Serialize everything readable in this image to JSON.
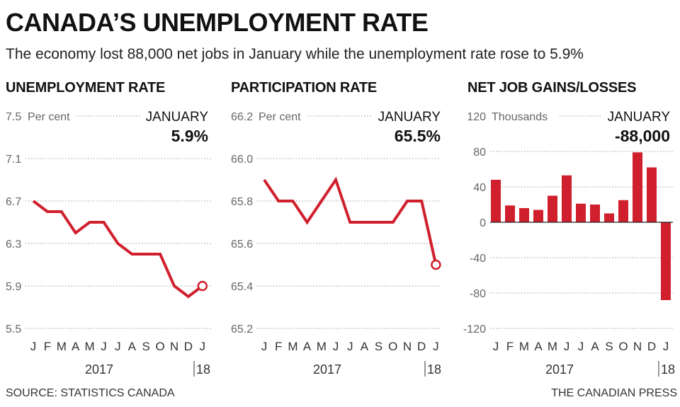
{
  "title": "CANADA’S UNEMPLOYMENT RATE",
  "subtitle": "The economy lost 88,000 net jobs in January while the unemployment rate rose to 5.9%",
  "footer": {
    "source": "SOURCE: STATISTICS CANADA",
    "credit": "THE CANADIAN PRESS"
  },
  "colors": {
    "series": "#d0202e",
    "grid": "#9a9a9a",
    "axis_text": "#666666"
  },
  "chart_data": [
    {
      "type": "line",
      "title": "UNEMPLOYMENT RATE",
      "unit_label": "Per cent",
      "callout": {
        "label": "JANUARY",
        "value": "5.9%"
      },
      "x": [
        "J",
        "F",
        "M",
        "A",
        "M",
        "J",
        "J",
        "A",
        "S",
        "O",
        "N",
        "D",
        "J"
      ],
      "year_labels": {
        "start": "2017",
        "end": "18"
      },
      "y": [
        6.7,
        6.6,
        6.6,
        6.4,
        6.5,
        6.5,
        6.3,
        6.2,
        6.2,
        6.2,
        5.9,
        5.8,
        5.9
      ],
      "ylim": [
        5.5,
        7.5
      ],
      "yticks": [
        "7.5",
        "7.1",
        "6.7",
        "6.3",
        "5.9",
        "5.5"
      ],
      "last_point_marker": "open-circle",
      "grid": true
    },
    {
      "type": "line",
      "title": "PARTICIPATION RATE",
      "unit_label": "Per cent",
      "callout": {
        "label": "JANUARY",
        "value": "65.5%"
      },
      "x": [
        "J",
        "F",
        "M",
        "A",
        "M",
        "J",
        "J",
        "A",
        "S",
        "O",
        "N",
        "D",
        "J"
      ],
      "year_labels": {
        "start": "2017",
        "end": "18"
      },
      "y": [
        65.9,
        65.8,
        65.8,
        65.7,
        65.8,
        65.9,
        65.7,
        65.7,
        65.7,
        65.7,
        65.8,
        65.8,
        65.5
      ],
      "ylim": [
        65.2,
        66.2
      ],
      "yticks": [
        "66.2",
        "66.0",
        "65.8",
        "65.6",
        "65.4",
        "65.2"
      ],
      "last_point_marker": "open-circle",
      "grid": true
    },
    {
      "type": "bar",
      "title": "NET JOB GAINS/LOSSES",
      "unit_label": "Thousands",
      "callout": {
        "label": "JANUARY",
        "value": "-88,000"
      },
      "categories": [
        "J",
        "F",
        "M",
        "A",
        "M",
        "J",
        "J",
        "A",
        "S",
        "O",
        "N",
        "D",
        "J"
      ],
      "year_labels": {
        "start": "2017",
        "end": "18"
      },
      "values": [
        48,
        19,
        16,
        14,
        30,
        53,
        21,
        20,
        10,
        25,
        79,
        62,
        -88
      ],
      "ylim": [
        -120,
        120
      ],
      "yticks": [
        "120",
        "80",
        "40",
        "0",
        "-40",
        "-80",
        "-120"
      ],
      "grid": true
    }
  ]
}
